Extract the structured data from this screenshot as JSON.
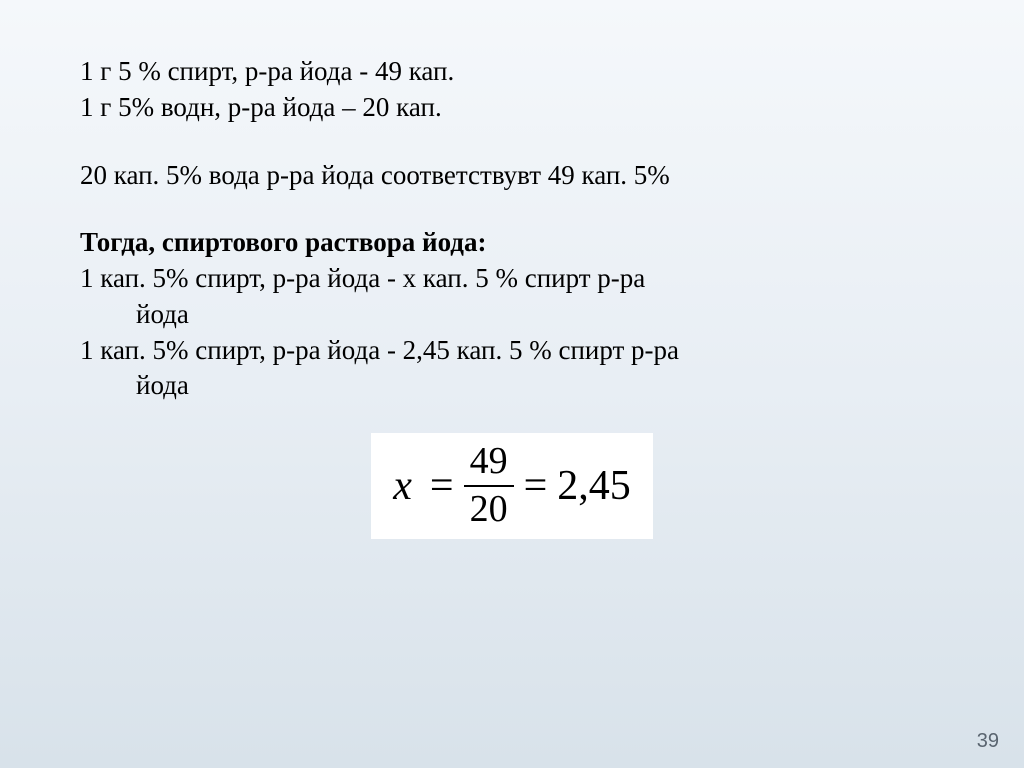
{
  "lines": {
    "line1": "1 г 5 % спирт,    р-ра йода  - 49 кап.",
    "line2": "1 г 5% водн,       р-ра йода – 20 кап.",
    "line3": "20 кап. 5% вода р-ра йода соответствувт 49 кап. 5%",
    "line4": "Тогда, спиртового  раствора йода:",
    "line5a": "1 кап. 5% спирт, р-ра йода  - х кап. 5 % спирт р-ра",
    "line5b": "йода",
    "line6a": "1 кап. 5% спирт, р-ра йода  - 2,45 кап. 5 % спирт р-ра",
    "line6b": "йода"
  },
  "formula": {
    "variable": "x",
    "numerator": "49",
    "denominator": "20",
    "result": "2,45"
  },
  "pageNumber": "39",
  "style": {
    "background_gradient_top": "#f5f8fb",
    "background_gradient_mid": "#e8eef4",
    "background_gradient_bottom": "#d8e2ea",
    "body_fontsize": 27,
    "text_color": "#000000",
    "formula_fontsize": 42,
    "fraction_fontsize": 38,
    "formula_bg": "#ffffff",
    "page_number_color": "#5a6570",
    "page_number_fontsize": 20
  }
}
